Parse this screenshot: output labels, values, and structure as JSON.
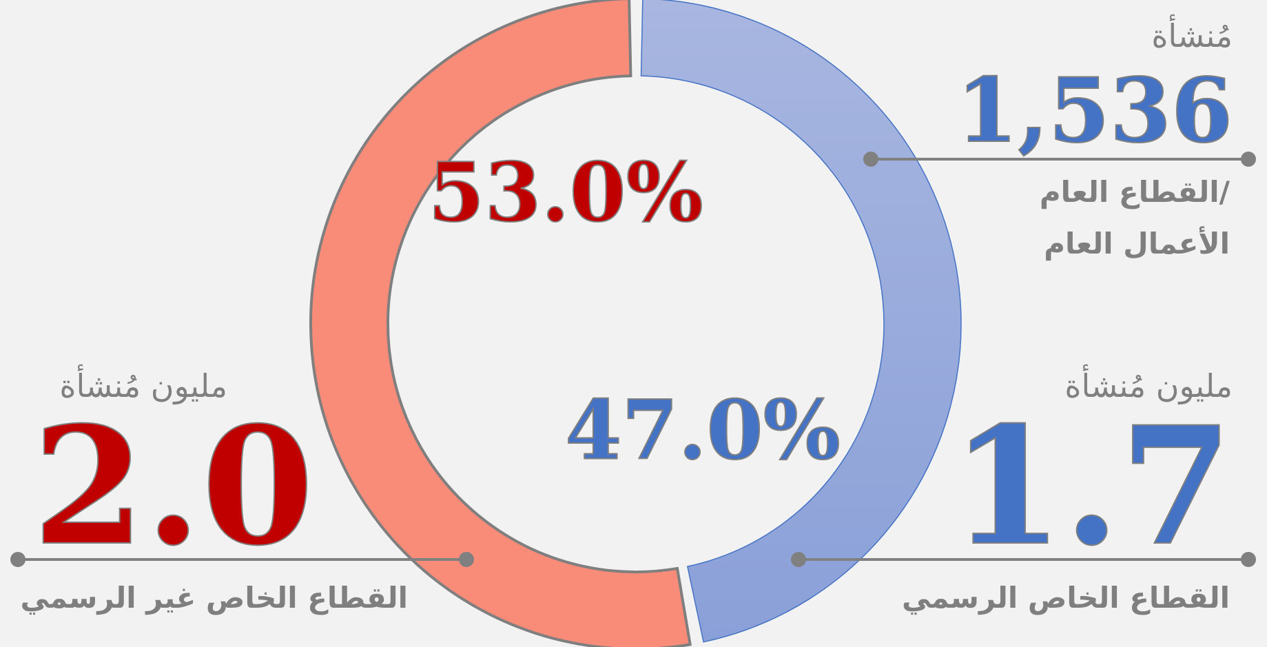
{
  "chart_data": {
    "type": "donut",
    "categories": [
      "القطاع الخاص غير الرسمي",
      "القطاع الخاص الرسمي"
    ],
    "values": [
      53,
      47
    ],
    "value_labels": [
      "53.0%",
      "47.0%"
    ],
    "colors": [
      "#f98b79",
      "#94a8dc"
    ],
    "label_colors": [
      "#c00000",
      "#4472c4"
    ]
  },
  "stats": [
    {
      "unit": "مليون مُنشأة",
      "figure": "2.0",
      "label": "القطاع الخاص غير الرسمي"
    },
    {
      "unit": "مليون مُنشأة",
      "figure": "1.7",
      "label": "القطاع الخاص الرسمي"
    },
    {
      "unit": "مُنشأة",
      "figure": "1,536",
      "label_lines": [
        "القطاع العام/",
        "الأعمال العام"
      ]
    }
  ]
}
